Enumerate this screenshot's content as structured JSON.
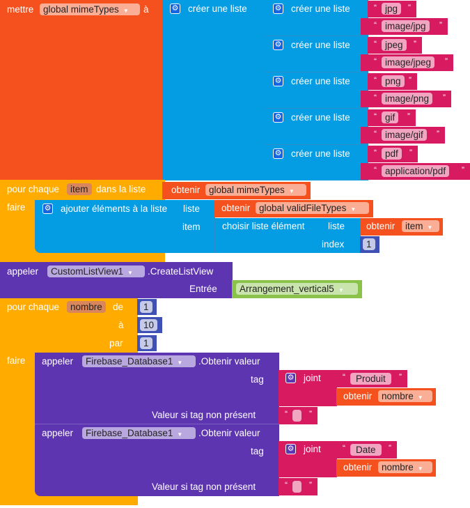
{
  "set_block": {
    "label": "mettre",
    "variable": "global mimeTypes",
    "to_label": "à"
  },
  "outer_list": {
    "label": "créer une liste"
  },
  "sub_lists": [
    {
      "label": "créer une liste",
      "items": [
        "jpg",
        "image/jpg"
      ]
    },
    {
      "label": "créer une liste",
      "items": [
        "jpeg",
        "image/jpeg"
      ]
    },
    {
      "label": "créer une liste",
      "items": [
        "png",
        "image/png"
      ]
    },
    {
      "label": "créer une liste",
      "items": [
        "gif",
        "image/gif"
      ]
    },
    {
      "label": "créer une liste",
      "items": [
        "pdf",
        "application/pdf"
      ]
    }
  ],
  "foreach1": {
    "label": "pour chaque",
    "var": "item",
    "in_list": "dans la liste",
    "do": "faire",
    "get": "obtenir",
    "get_var": "global mimeTypes",
    "add": {
      "label": "ajouter éléments à la liste",
      "list_label": "liste",
      "item_label": "item",
      "get": "obtenir",
      "list_var": "global validFileTypes",
      "pick": {
        "label": "choisir liste élément",
        "list_label": "liste",
        "index_label": "index",
        "get": "obtenir",
        "var": "item",
        "index": "1"
      }
    }
  },
  "call1": {
    "label": "appeler",
    "component": "CustomListView1",
    "method": ".CreateListView",
    "arg_label": "Entrée",
    "arg_value": "Arrangement_vertical5"
  },
  "for_range": {
    "label": "pour chaque",
    "var": "nombre",
    "from": "de",
    "to": "à",
    "by": "par",
    "from_val": "1",
    "to_val": "10",
    "by_val": "1",
    "do": "faire"
  },
  "firebase_calls": [
    {
      "label": "appeler",
      "component": "Firebase_Database1",
      "method": ".Obtenir valeur",
      "tag_label": "tag",
      "join": "joint",
      "text": "Produit",
      "get": "obtenir",
      "var": "nombre",
      "default_label": "Valeur si tag non présent"
    },
    {
      "label": "appeler",
      "component": "Firebase_Database1",
      "method": ".Obtenir valeur",
      "tag_label": "tag",
      "join": "joint",
      "text": "Date",
      "get": "obtenir",
      "var": "nombre",
      "default_label": "Valeur si tag non présent"
    }
  ],
  "colors": {
    "variables": "#f4511e",
    "lists": "#049de3",
    "text": "#d81b60",
    "control": "#ffab00",
    "components": "#5e35b1",
    "math": "#3f51b5",
    "component_ref": "#8bc34a"
  }
}
